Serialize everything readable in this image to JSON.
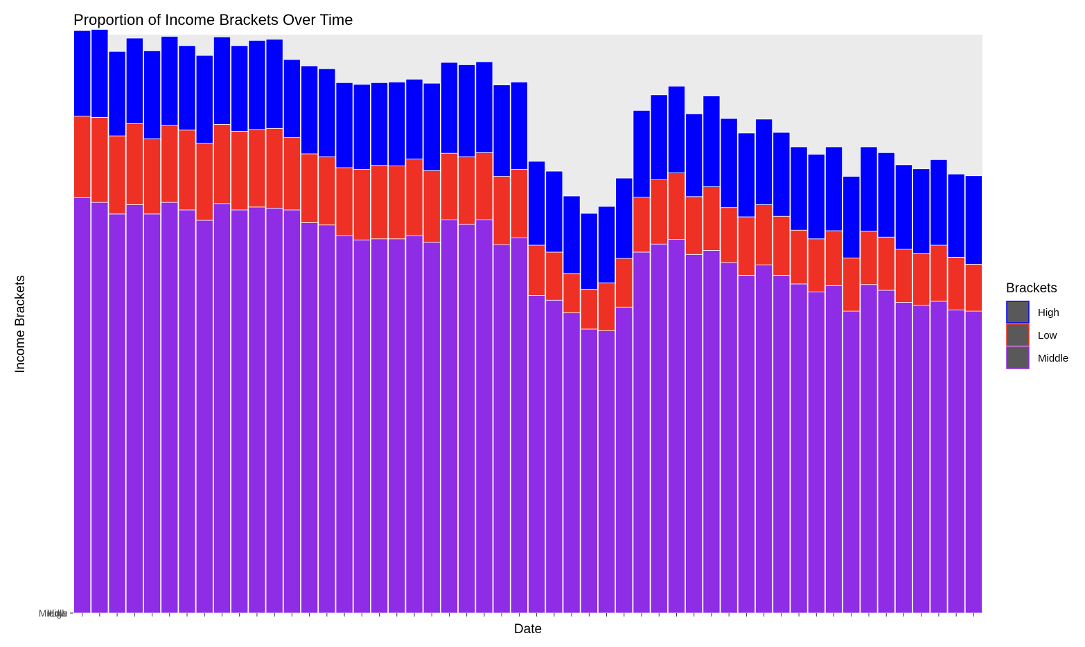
{
  "chart_data": {
    "type": "bar",
    "stacked": true,
    "title": "Proportion of Income Brackets Over Time",
    "xlabel": "Date",
    "ylabel": "Income Brackets",
    "y_tick_labels": [
      "Middle",
      "High",
      "Low"
    ],
    "ylim": [
      0,
      1000
    ],
    "grid": true,
    "legend": {
      "title": "Brackets",
      "placement": "right",
      "entries": [
        {
          "name": "High",
          "color": "#0000ff"
        },
        {
          "name": "Low",
          "color": "#ee3124"
        },
        {
          "name": "Middle",
          "color": "#8e2ce6"
        }
      ]
    },
    "colors": {
      "High": "#0000ff",
      "Low": "#ee3124",
      "Middle": "#8e2ce6",
      "panel": "#ebebeb",
      "bar_border": "#ffffff"
    },
    "series": [
      {
        "name": "Middle",
        "values": [
          718,
          710,
          690,
          706,
          690,
          710,
          697,
          679,
          708,
          697,
          702,
          700,
          697,
          675,
          671,
          652,
          645,
          647,
          647,
          652,
          641,
          680,
          672,
          680,
          637,
          649,
          549,
          541,
          519,
          491,
          488,
          529,
          624,
          638,
          646,
          620,
          627,
          606,
          584,
          602,
          584,
          569,
          555,
          566,
          522,
          568,
          558,
          537,
          532,
          539,
          524,
          522
        ]
      },
      {
        "name": "Low",
        "values": [
          141,
          147,
          135,
          140,
          130,
          133,
          138,
          133,
          137,
          136,
          134,
          138,
          125,
          119,
          118,
          118,
          122,
          127,
          126,
          133,
          124,
          115,
          117,
          116,
          118,
          118,
          87,
          83,
          68,
          69,
          83,
          84,
          95,
          111,
          115,
          100,
          110,
          95,
          101,
          104,
          102,
          93,
          92,
          95,
          92,
          92,
          92,
          92,
          90,
          97,
          91,
          81
        ]
      },
      {
        "name": "High",
        "values": [
          148,
          152,
          146,
          148,
          152,
          154,
          146,
          152,
          151,
          148,
          154,
          154,
          135,
          152,
          152,
          147,
          147,
          143,
          145,
          138,
          151,
          157,
          159,
          157,
          158,
          151,
          145,
          140,
          134,
          131,
          132,
          139,
          150,
          147,
          150,
          143,
          157,
          154,
          145,
          148,
          145,
          144,
          146,
          145,
          141,
          146,
          146,
          146,
          146,
          148,
          144,
          153
        ]
      }
    ]
  }
}
